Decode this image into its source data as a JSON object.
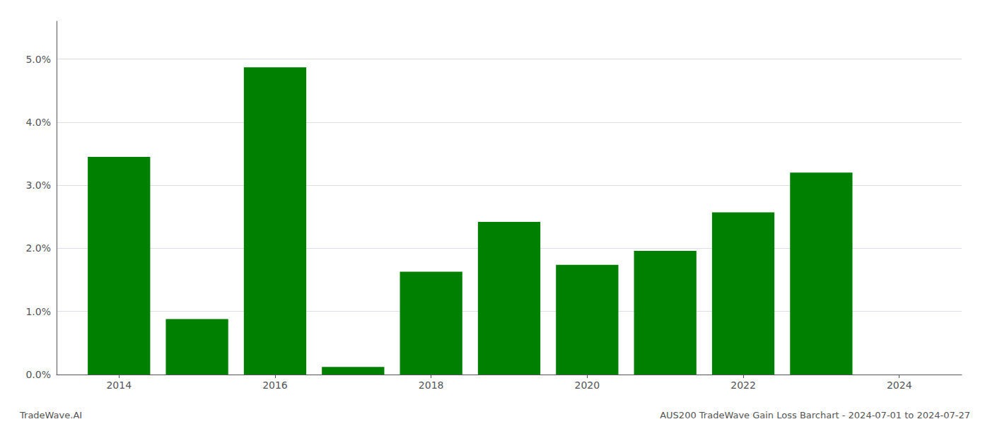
{
  "chart_data": {
    "type": "bar",
    "x": [
      2014,
      2015,
      2016,
      2017,
      2018,
      2019,
      2020,
      2021,
      2022,
      2023
    ],
    "values": [
      0.0345,
      0.0088,
      0.0487,
      0.0012,
      0.0163,
      0.0242,
      0.0174,
      0.0196,
      0.0257,
      0.032
    ],
    "color": "#008000",
    "xlim": [
      2013.2,
      2024.8
    ],
    "xticks": [
      2014,
      2016,
      2018,
      2020,
      2022,
      2024
    ],
    "ylim": [
      0,
      0.056
    ],
    "yticks": [
      {
        "value": 0.0,
        "label": "0.0%"
      },
      {
        "value": 0.01,
        "label": "1.0%"
      },
      {
        "value": 0.02,
        "label": "2.0%"
      },
      {
        "value": 0.03,
        "label": "3.0%"
      },
      {
        "value": 0.04,
        "label": "4.0%"
      },
      {
        "value": 0.05,
        "label": "5.0%"
      }
    ],
    "grid": true,
    "annotations": [
      "TradeWave.AI",
      "AUS200 TradeWave Gain Loss Barchart - 2024-07-01 to 2024-07-27"
    ]
  }
}
